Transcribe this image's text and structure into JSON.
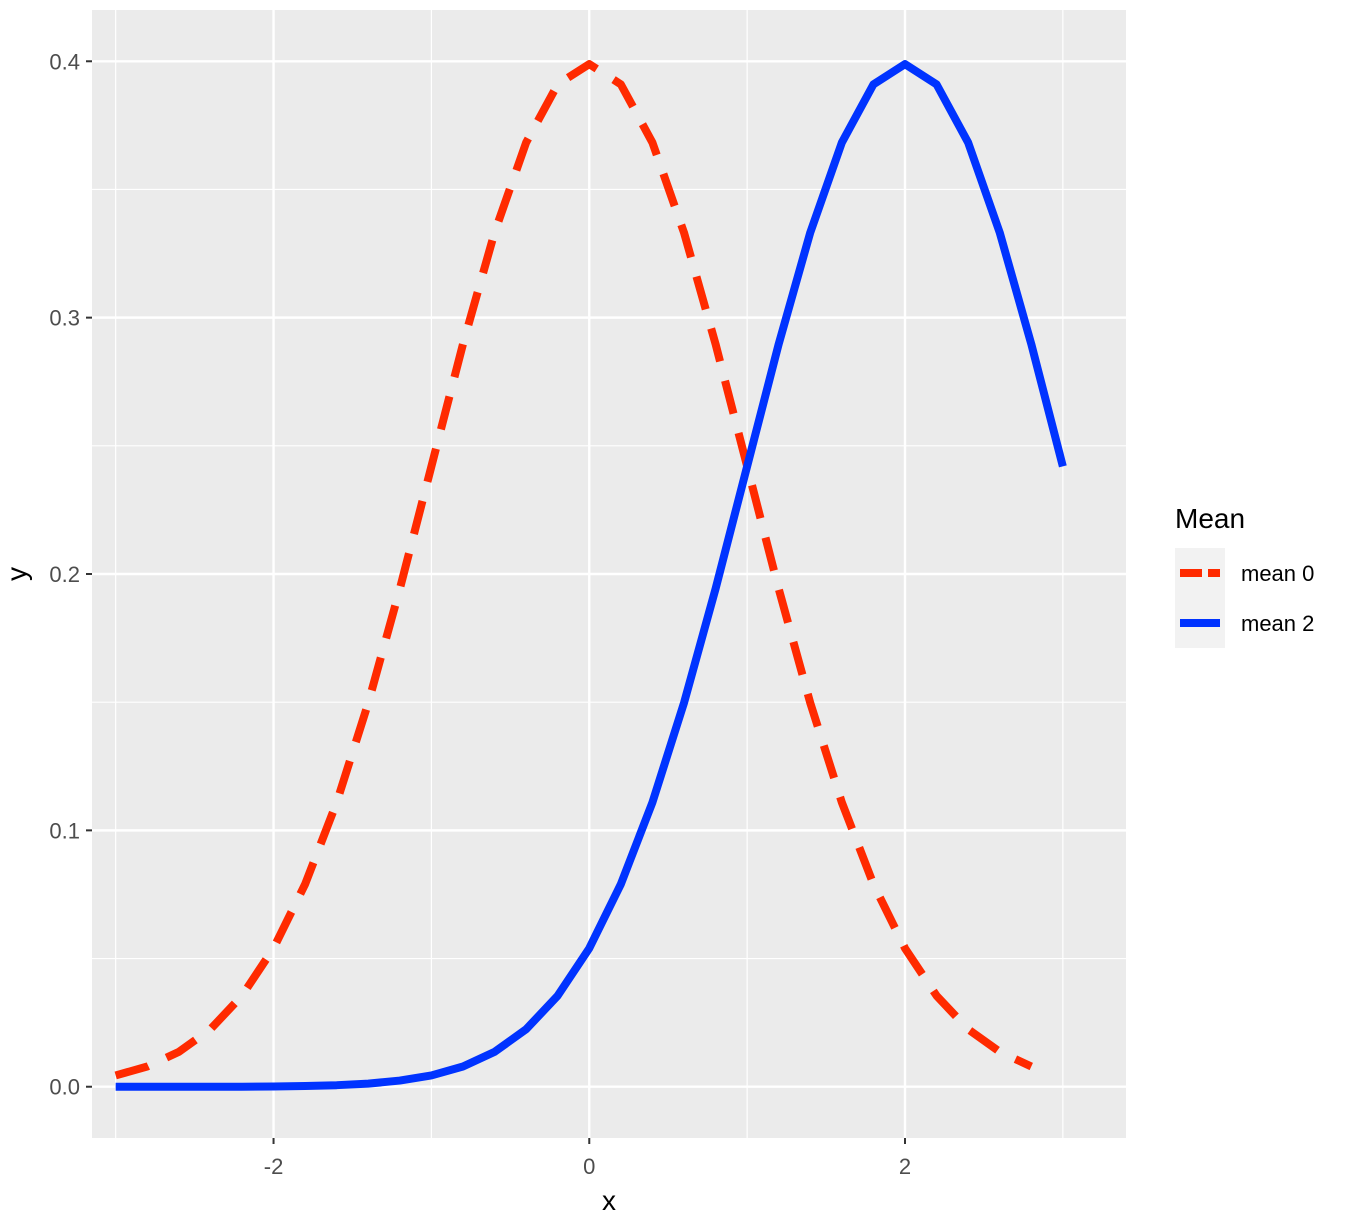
{
  "chart_data": {
    "type": "line",
    "xlabel": "x",
    "ylabel": "y",
    "xlim": [
      -3.15,
      3.4
    ],
    "ylim": [
      -0.02,
      0.42
    ],
    "x_ticks": [
      {
        "value": -2,
        "label": "-2"
      },
      {
        "value": 0,
        "label": "0"
      },
      {
        "value": 2,
        "label": "2"
      }
    ],
    "y_ticks": [
      {
        "value": 0.0,
        "label": "0.0"
      },
      {
        "value": 0.1,
        "label": "0.1"
      },
      {
        "value": 0.2,
        "label": "0.2"
      },
      {
        "value": 0.3,
        "label": "0.3"
      },
      {
        "value": 0.4,
        "label": "0.4"
      }
    ],
    "x_minor_grid": [
      -3,
      -1,
      1,
      3
    ],
    "y_minor_grid": [
      0.05,
      0.15,
      0.25,
      0.35
    ],
    "grid": true,
    "panel_background": "#ebebeb",
    "grid_color": "#ffffff",
    "legend": {
      "title": "Mean",
      "placement": "right"
    },
    "series": [
      {
        "name": "mean 0",
        "color": "#ff2a00",
        "linestyle": "dashed",
        "x": [
          -3.0,
          -2.8,
          -2.6,
          -2.4,
          -2.2,
          -2.0,
          -1.8,
          -1.6,
          -1.4,
          -1.2,
          -1.0,
          -0.8,
          -0.6,
          -0.4,
          -0.2,
          0.0,
          0.2,
          0.4,
          0.6,
          0.8,
          1.0,
          1.2,
          1.4,
          1.6,
          1.8,
          2.0,
          2.2,
          2.4,
          2.6,
          2.8
        ],
        "y": [
          0.0044,
          0.0079,
          0.0136,
          0.0224,
          0.0355,
          0.054,
          0.079,
          0.1109,
          0.1497,
          0.1942,
          0.242,
          0.2897,
          0.3332,
          0.3683,
          0.391,
          0.3989,
          0.391,
          0.3683,
          0.3332,
          0.2897,
          0.242,
          0.1942,
          0.1497,
          0.1109,
          0.079,
          0.054,
          0.0355,
          0.0224,
          0.0136,
          0.0079
        ]
      },
      {
        "name": "mean 2",
        "color": "#0033ff",
        "linestyle": "solid",
        "x": [
          -3.0,
          -2.8,
          -2.6,
          -2.4,
          -2.2,
          -2.0,
          -1.8,
          -1.6,
          -1.4,
          -1.2,
          -1.0,
          -0.8,
          -0.6,
          -0.4,
          -0.2,
          0.0,
          0.2,
          0.4,
          0.6,
          0.8,
          1.0,
          1.2,
          1.4,
          1.6,
          1.8,
          2.0,
          2.2,
          2.4,
          2.6,
          2.8,
          3.0
        ],
        "y": [
          0.0,
          0.0,
          0.0,
          0.0,
          0.0,
          0.0001,
          0.0003,
          0.0006,
          0.0012,
          0.0024,
          0.0044,
          0.0079,
          0.0136,
          0.0224,
          0.0355,
          0.054,
          0.079,
          0.1109,
          0.1497,
          0.1942,
          0.242,
          0.2897,
          0.3332,
          0.3683,
          0.391,
          0.3989,
          0.391,
          0.3683,
          0.3332,
          0.2897,
          0.242
        ]
      }
    ]
  }
}
